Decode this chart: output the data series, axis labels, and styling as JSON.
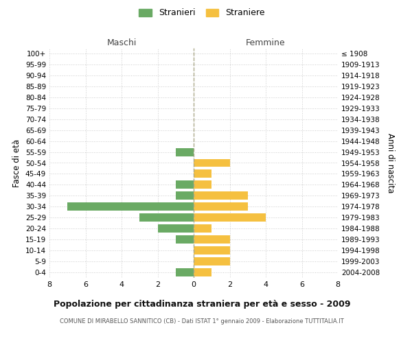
{
  "age_groups": [
    "100+",
    "95-99",
    "90-94",
    "85-89",
    "80-84",
    "75-79",
    "70-74",
    "65-69",
    "60-64",
    "55-59",
    "50-54",
    "45-49",
    "40-44",
    "35-39",
    "30-34",
    "25-29",
    "20-24",
    "15-19",
    "10-14",
    "5-9",
    "0-4"
  ],
  "birth_years": [
    "≤ 1908",
    "1909-1913",
    "1914-1918",
    "1919-1923",
    "1924-1928",
    "1929-1933",
    "1934-1938",
    "1939-1943",
    "1944-1948",
    "1949-1953",
    "1954-1958",
    "1959-1963",
    "1964-1968",
    "1969-1973",
    "1974-1978",
    "1979-1983",
    "1984-1988",
    "1989-1993",
    "1994-1998",
    "1999-2003",
    "2004-2008"
  ],
  "maschi": [
    0,
    0,
    0,
    0,
    0,
    0,
    0,
    0,
    0,
    1,
    0,
    0,
    1,
    1,
    7,
    3,
    2,
    1,
    0,
    0,
    1
  ],
  "femmine": [
    0,
    0,
    0,
    0,
    0,
    0,
    0,
    0,
    0,
    0,
    2,
    1,
    1,
    3,
    3,
    4,
    1,
    2,
    2,
    2,
    1
  ],
  "color_maschi": "#6aaa64",
  "color_femmine": "#f5c040",
  "xlim": 8,
  "title": "Popolazione per cittadinanza straniera per età e sesso - 2009",
  "subtitle": "COMUNE DI MIRABELLO SANNITICO (CB) - Dati ISTAT 1° gennaio 2009 - Elaborazione TUTTITALIA.IT",
  "ylabel_left": "Fasce di età",
  "ylabel_right": "Anni di nascita",
  "legend_maschi": "Stranieri",
  "legend_femmine": "Straniere",
  "header_left": "Maschi",
  "header_right": "Femmine",
  "background_color": "#ffffff",
  "grid_color": "#cccccc",
  "bar_height": 0.75
}
